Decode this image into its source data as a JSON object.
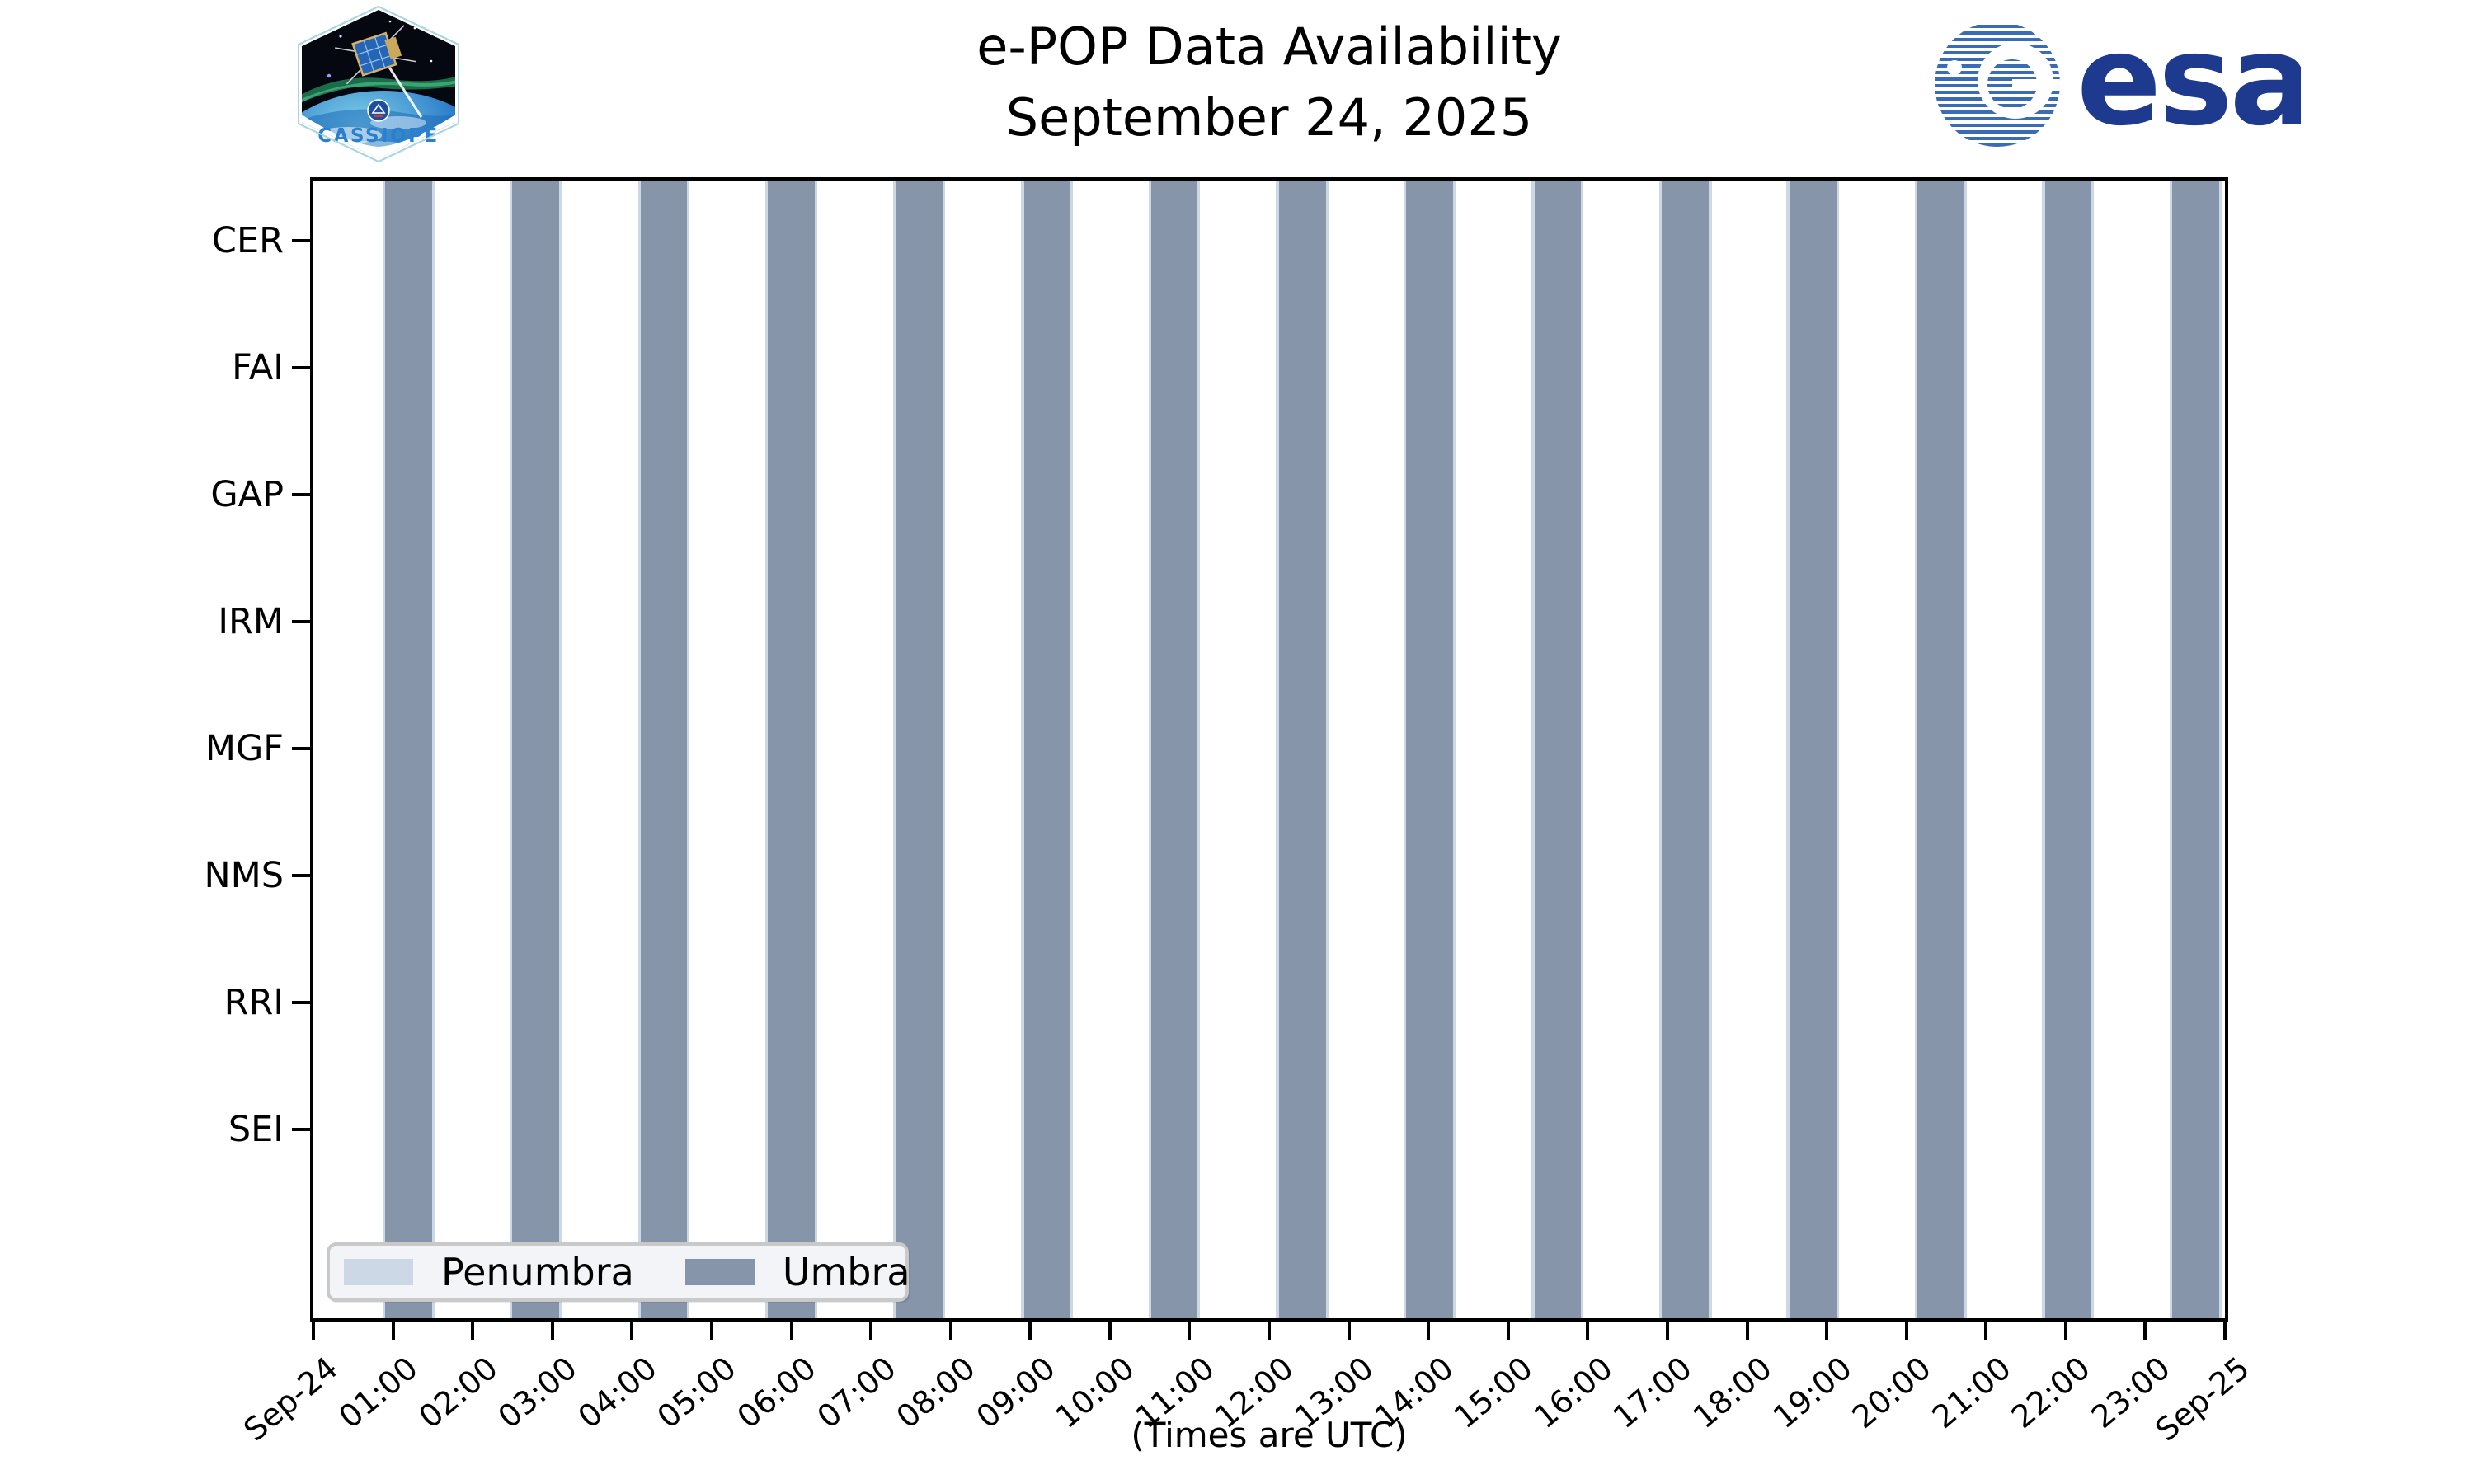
{
  "header": {
    "title_line1": "e-POP Data Availability",
    "title_line2": "September 24, 2025",
    "cassiope_logo_label": "CASSIOPE",
    "esa_logo_label": "esa"
  },
  "footer": {
    "note": "(Times are UTC)"
  },
  "legend": {
    "penumbra_label": "Penumbra",
    "umbra_label": "Umbra"
  },
  "colors": {
    "umbra": "#8695aa",
    "penumbra": "#ccd8e5",
    "axis": "#000000",
    "legend_bg": "#f3f4f8",
    "legend_border": "#c9c9c9",
    "esa_navy": "#1e3a8f",
    "cassiope_blue": "#2b7fd0"
  },
  "chart_data": {
    "type": "bar",
    "subtype": "timeline-availability",
    "title": "e-POP Data Availability",
    "subtitle": "September 24, 2025",
    "ylabel_categories": [
      "CER",
      "FAI",
      "GAP",
      "IRM",
      "MGF",
      "NMS",
      "RRI",
      "SEI"
    ],
    "x_tick_labels": [
      "Sep-24",
      "01:00",
      "02:00",
      "03:00",
      "04:00",
      "05:00",
      "06:00",
      "07:00",
      "08:00",
      "09:00",
      "10:00",
      "11:00",
      "12:00",
      "13:00",
      "14:00",
      "15:00",
      "16:00",
      "17:00",
      "18:00",
      "19:00",
      "20:00",
      "21:00",
      "22:00",
      "23:00",
      "Sep-25"
    ],
    "x_range_hours": [
      0,
      24
    ],
    "x_axis_note": "(Times are UTC)",
    "grid": false,
    "legend_position": "lower-left-inside",
    "legend_entries": [
      {
        "label": "Penumbra",
        "color": "#ccd8e5"
      },
      {
        "label": "Umbra",
        "color": "#8695aa"
      }
    ],
    "umbra_intervals_hours": [
      [
        0.9,
        1.49
      ],
      [
        2.5,
        3.09
      ],
      [
        4.11,
        4.69
      ],
      [
        5.71,
        6.29
      ],
      [
        7.31,
        7.9
      ],
      [
        8.92,
        9.5
      ],
      [
        10.52,
        11.1
      ],
      [
        12.12,
        12.71
      ],
      [
        13.72,
        14.31
      ],
      [
        15.33,
        15.91
      ],
      [
        16.93,
        17.52
      ],
      [
        18.53,
        19.12
      ],
      [
        20.14,
        20.72
      ],
      [
        21.74,
        22.32
      ],
      [
        23.34,
        23.93
      ]
    ],
    "umbra_intervals_utc": [
      [
        "00:54",
        "01:29"
      ],
      [
        "02:30",
        "03:05"
      ],
      [
        "04:06",
        "04:41"
      ],
      [
        "05:43",
        "06:18"
      ],
      [
        "07:19",
        "07:54"
      ],
      [
        "08:55",
        "09:30"
      ],
      [
        "10:31",
        "11:06"
      ],
      [
        "12:07",
        "12:42"
      ],
      [
        "13:43",
        "14:19"
      ],
      [
        "15:20",
        "15:55"
      ],
      [
        "16:56",
        "17:31"
      ],
      [
        "18:32",
        "19:07"
      ],
      [
        "20:08",
        "20:43"
      ],
      [
        "21:44",
        "22:19"
      ],
      [
        "23:21",
        "23:56"
      ]
    ],
    "penumbra_margin_hours": 0.035,
    "bars_apply_to": "all instruments (full-height vertical bands)"
  }
}
